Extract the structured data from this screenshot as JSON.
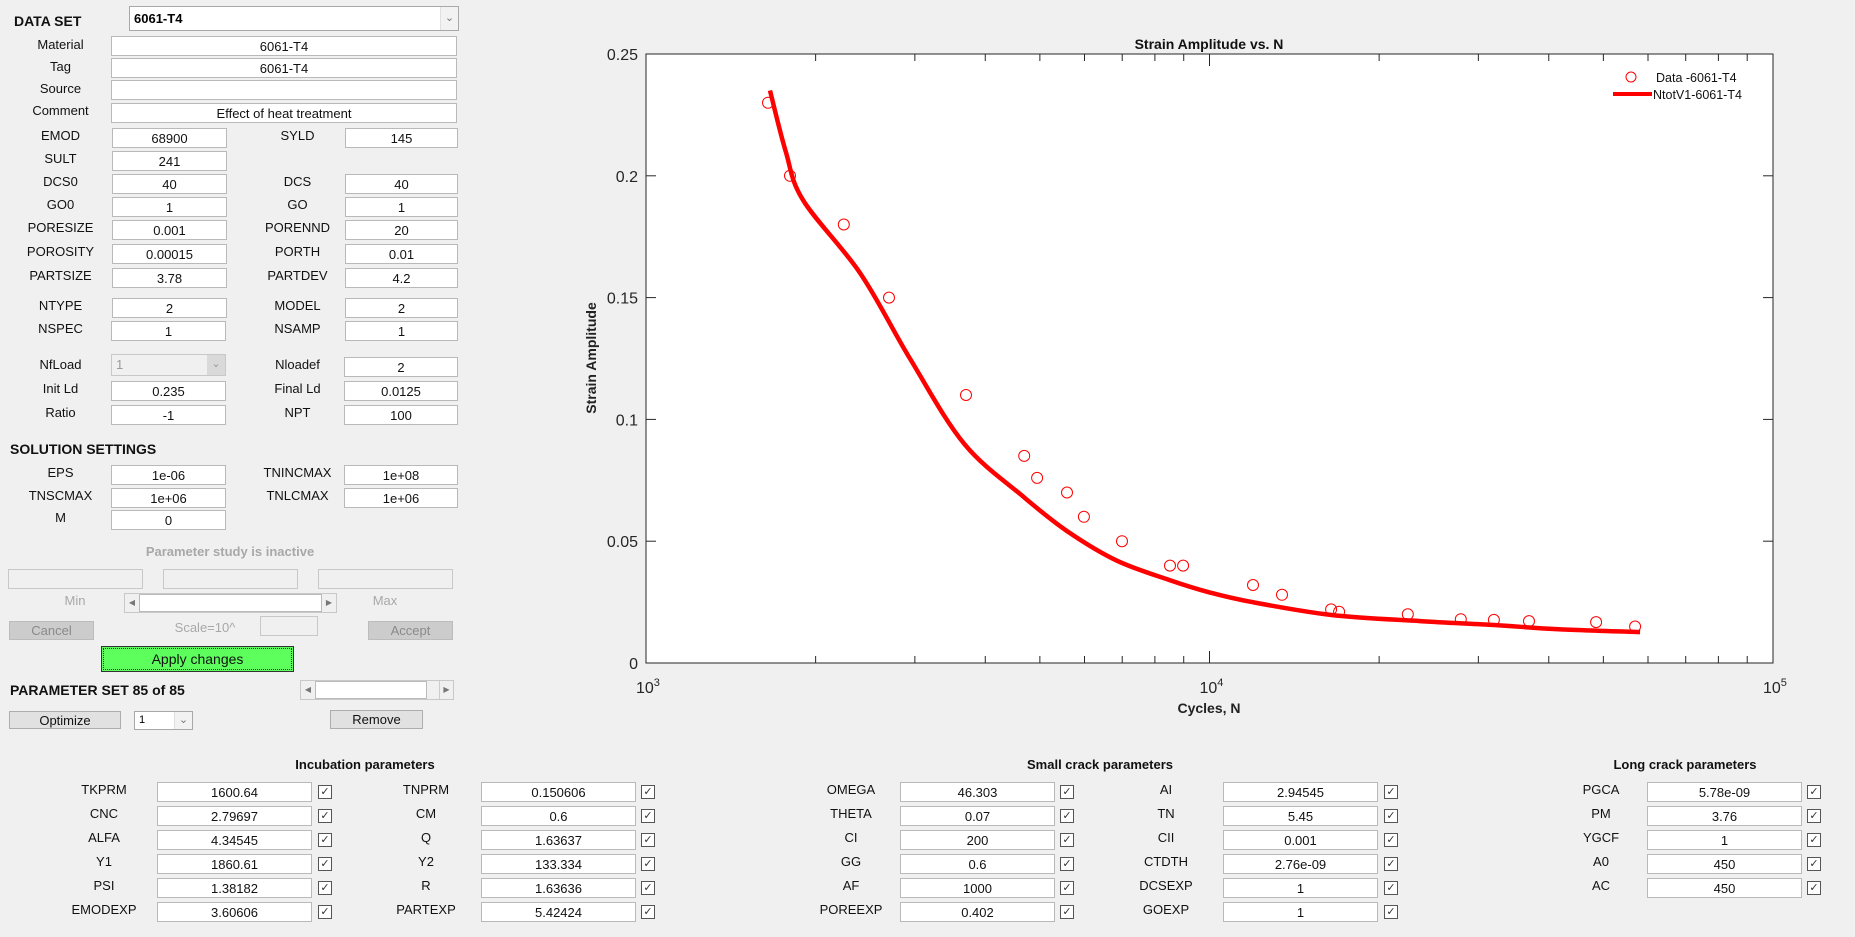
{
  "dataset": {
    "header": "DATA SET",
    "selected": "6061-T4",
    "fields": {
      "material": {
        "label": "Material",
        "value": "6061-T4"
      },
      "tag": {
        "label": "Tag",
        "value": "6061-T4"
      },
      "source": {
        "label": "Source",
        "value": ""
      },
      "comment": {
        "label": "Comment",
        "value": "Effect of heat treatment"
      }
    }
  },
  "props": {
    "emod": {
      "label": "EMOD",
      "value": "68900"
    },
    "syld": {
      "label": "SYLD",
      "value": "145"
    },
    "sult": {
      "label": "SULT",
      "value": "241"
    },
    "dcs0": {
      "label": "DCS0",
      "value": "40"
    },
    "dcs": {
      "label": "DCS",
      "value": "40"
    },
    "go0": {
      "label": "GO0",
      "value": "1"
    },
    "go": {
      "label": "GO",
      "value": "1"
    },
    "poresize": {
      "label": "PORESIZE",
      "value": "0.001"
    },
    "porennd": {
      "label": "PORENND",
      "value": "20"
    },
    "porosity": {
      "label": "POROSITY",
      "value": "0.00015"
    },
    "porth": {
      "label": "PORTH",
      "value": "0.01"
    },
    "partsize": {
      "label": "PARTSIZE",
      "value": "3.78"
    },
    "partdev": {
      "label": "PARTDEV",
      "value": "4.2"
    },
    "ntype": {
      "label": "NTYPE",
      "value": "2"
    },
    "model": {
      "label": "MODEL",
      "value": "2"
    },
    "nspec": {
      "label": "NSPEC",
      "value": "1"
    },
    "nsamp": {
      "label": "NSAMP",
      "value": "1"
    },
    "nfload": {
      "label": "NfLoad",
      "value": "1"
    },
    "nloadef": {
      "label": "Nloadef",
      "value": "2"
    },
    "initld": {
      "label": "Init Ld",
      "value": "0.235"
    },
    "finalld": {
      "label": "Final Ld",
      "value": "0.0125"
    },
    "ratio": {
      "label": "Ratio",
      "value": "-1"
    },
    "npt": {
      "label": "NPT",
      "value": "100"
    }
  },
  "solution": {
    "header": "SOLUTION SETTINGS",
    "eps": {
      "label": "EPS",
      "value": "1e-06"
    },
    "tnincmax": {
      "label": "TNINCMAX",
      "value": "1e+08"
    },
    "tnscmax": {
      "label": "TNSCMAX",
      "value": "1e+06"
    },
    "tnlcmax": {
      "label": "TNLCMAX",
      "value": "1e+06"
    },
    "m": {
      "label": "M",
      "value": "0"
    }
  },
  "param_study": {
    "status": "Parameter study is inactive",
    "min_label": "Min",
    "max_label": "Max",
    "cancel": "Cancel",
    "scale_label": "Scale=10^",
    "accept": "Accept"
  },
  "apply_label": "Apply changes",
  "param_set": {
    "label": "PARAMETER SET 85 of 85",
    "optimize": "Optimize",
    "dropdown_value": "1",
    "remove": "Remove"
  },
  "groups": {
    "incubation": {
      "title": "Incubation parameters",
      "left": [
        {
          "label": "TKPRM",
          "value": "1600.64",
          "checked": true
        },
        {
          "label": "CNC",
          "value": "2.79697",
          "checked": true
        },
        {
          "label": "ALFA",
          "value": "4.34545",
          "checked": true
        },
        {
          "label": "Y1",
          "value": "1860.61",
          "checked": true
        },
        {
          "label": "PSI",
          "value": "1.38182",
          "checked": true
        },
        {
          "label": "EMODEXP",
          "value": "3.60606",
          "checked": true
        }
      ],
      "right": [
        {
          "label": "TNPRM",
          "value": "0.150606",
          "checked": true
        },
        {
          "label": "CM",
          "value": "0.6",
          "checked": true
        },
        {
          "label": "Q",
          "value": "1.63637",
          "checked": true
        },
        {
          "label": "Y2",
          "value": "133.334",
          "checked": true
        },
        {
          "label": "R",
          "value": "1.63636",
          "checked": true
        },
        {
          "label": "PARTEXP",
          "value": "5.42424",
          "checked": true
        }
      ]
    },
    "small_crack": {
      "title": "Small crack parameters",
      "left": [
        {
          "label": "OMEGA",
          "value": "46.303",
          "checked": true
        },
        {
          "label": "THETA",
          "value": "0.07",
          "checked": true
        },
        {
          "label": "CI",
          "value": "200",
          "checked": true
        },
        {
          "label": "GG",
          "value": "0.6",
          "checked": true
        },
        {
          "label": "AF",
          "value": "1000",
          "checked": true
        },
        {
          "label": "POREEXP",
          "value": "0.402",
          "checked": true
        }
      ],
      "right": [
        {
          "label": "AI",
          "value": "2.94545",
          "checked": true
        },
        {
          "label": "TN",
          "value": "5.45",
          "checked": true
        },
        {
          "label": "CII",
          "value": "0.001",
          "checked": true
        },
        {
          "label": "CTDTH",
          "value": "2.76e-09",
          "checked": true
        },
        {
          "label": "DCSEXP",
          "value": "1",
          "checked": true
        },
        {
          "label": "GOEXP",
          "value": "1",
          "checked": true
        }
      ]
    },
    "long_crack": {
      "title": "Long crack parameters",
      "left": [
        {
          "label": "PGCA",
          "value": "5.78e-09",
          "checked": true
        },
        {
          "label": "PM",
          "value": "3.76",
          "checked": true
        },
        {
          "label": "YGCF",
          "value": "1",
          "checked": true
        },
        {
          "label": "A0",
          "value": "450",
          "checked": true
        },
        {
          "label": "AC",
          "value": "450",
          "checked": true
        }
      ]
    }
  },
  "icons": {
    "dropdown": "chevron-down-icon",
    "check": "checkmark-icon",
    "slider_left": "arrow-left-icon",
    "slider_right": "arrow-right-icon"
  },
  "colors": {
    "series": "#ff0000",
    "apply_button": "#5cff5c",
    "background": "#f0f0f0"
  },
  "chart_data": {
    "type": "scatter",
    "title": "Strain Amplitude vs. N",
    "xlabel": "Cycles, N",
    "ylabel": "Strain Amplitude",
    "xscale": "log",
    "xlim": [
      1000,
      100000
    ],
    "ylim": [
      0,
      0.25
    ],
    "xticks": [
      "10^3",
      "10^4",
      "10^5"
    ],
    "yticks": [
      "0",
      "0.05",
      "0.1",
      "0.15",
      "0.2",
      "0.25"
    ],
    "grid": false,
    "legend_position": "top-right",
    "legend": [
      "Data -6061-T4",
      "NtotV1-6061-T4"
    ],
    "series": [
      {
        "name": "Data -6061-T4",
        "type": "scatter",
        "marker": "circle-open",
        "color": "#ff0000",
        "x": [
          1646,
          1801,
          2244,
          2699,
          3698,
          4690,
          4944,
          5586,
          5986,
          6995,
          8511,
          8977,
          11944,
          13447,
          16433,
          16980,
          22490,
          27920,
          31970,
          36890,
          48530,
          56930
        ],
        "y": [
          0.23,
          0.2,
          0.18,
          0.15,
          0.11,
          0.085,
          0.076,
          0.07,
          0.06,
          0.05,
          0.04,
          0.04,
          0.032,
          0.028,
          0.022,
          0.021,
          0.02,
          0.018,
          0.0177,
          0.0172,
          0.0168,
          0.015
        ]
      },
      {
        "name": "NtotV1-6061-T4",
        "type": "line",
        "color": "#ff0000",
        "x": [
          1660,
          1770,
          1900,
          2400,
          2940,
          3670,
          4690,
          5600,
          6850,
          8510,
          10000,
          11900,
          16460,
          23620,
          32000,
          41200,
          58100
        ],
        "y": [
          0.235,
          0.21,
          0.19,
          0.16,
          0.125,
          0.09,
          0.068,
          0.054,
          0.042,
          0.034,
          0.029,
          0.025,
          0.0197,
          0.0172,
          0.0156,
          0.0139,
          0.0127
        ]
      }
    ]
  }
}
